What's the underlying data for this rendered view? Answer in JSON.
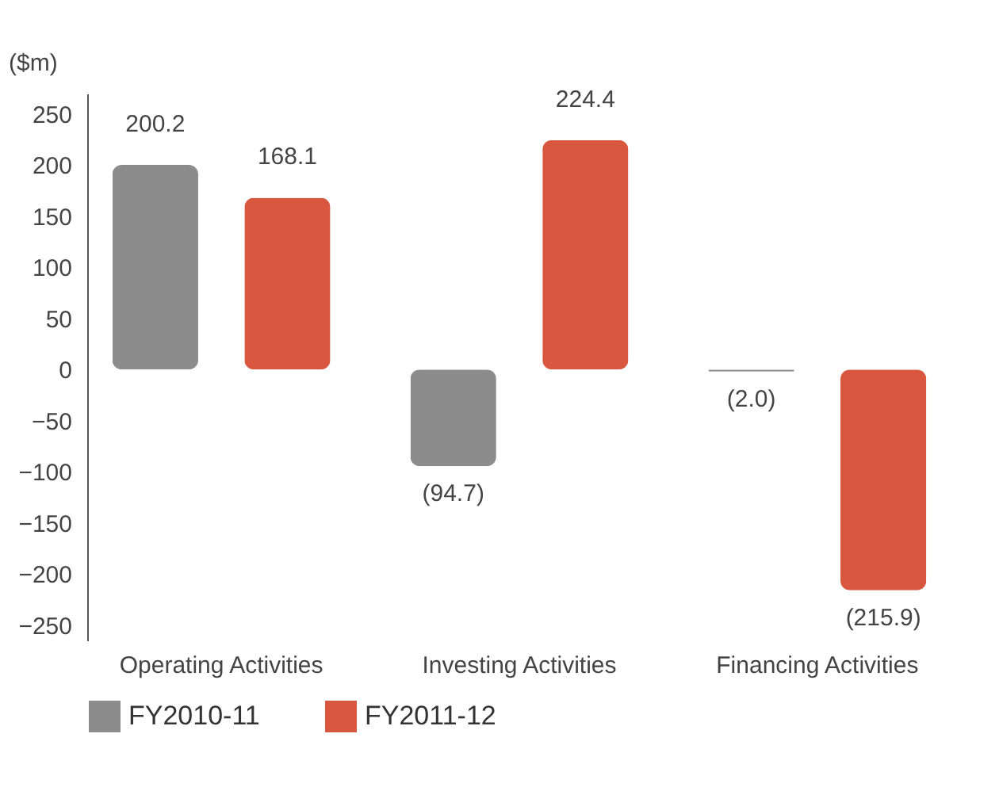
{
  "chart_data": {
    "type": "bar",
    "ylabel": "($m)",
    "categories": [
      "Operating Activities",
      "Investing Activities",
      "Financing Activities"
    ],
    "series": [
      {
        "name": "FY2010-11",
        "color": "#8c8c8c",
        "values": [
          200.2,
          -94.7,
          -2.0
        ],
        "value_labels": [
          "200.2",
          "(94.7)",
          "(2.0)"
        ]
      },
      {
        "name": "FY2011-12",
        "color": "#d9573f",
        "values": [
          168.1,
          224.4,
          -215.9
        ],
        "value_labels": [
          "168.1",
          "224.4",
          "(215.9)"
        ]
      }
    ],
    "ylim": [
      -265,
      270
    ],
    "yticks": [
      -250,
      -200,
      -150,
      -100,
      -50,
      0,
      50,
      100,
      150,
      200,
      250
    ],
    "grid": false,
    "legend": "bottom"
  }
}
